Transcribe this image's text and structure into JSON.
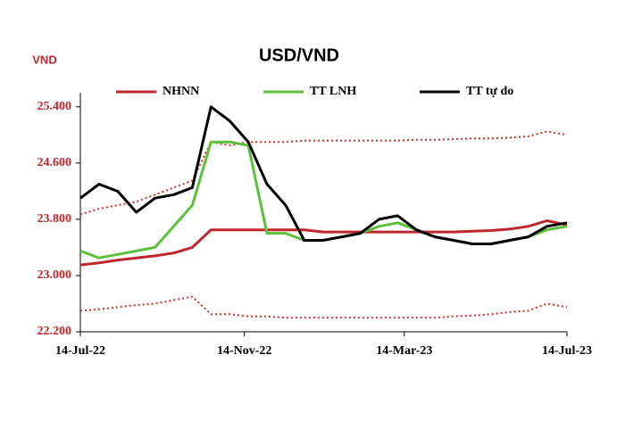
{
  "chart_data": {
    "type": "line",
    "title": "USD/VND",
    "y_unit_label": "VND",
    "x": [
      "2022-07-14",
      "2022-07-28",
      "2022-08-11",
      "2022-08-25",
      "2022-09-08",
      "2022-09-22",
      "2022-10-06",
      "2022-10-20",
      "2022-11-03",
      "2022-11-17",
      "2022-12-01",
      "2022-12-15",
      "2022-12-29",
      "2023-01-12",
      "2023-01-26",
      "2023-02-09",
      "2023-02-23",
      "2023-03-09",
      "2023-03-23",
      "2023-04-06",
      "2023-04-20",
      "2023-05-04",
      "2023-05-18",
      "2023-06-01",
      "2023-06-15",
      "2023-06-29",
      "2023-07-14"
    ],
    "series": [
      {
        "name": "NHNN",
        "color": "#c0272d",
        "values": [
          23150,
          23180,
          23220,
          23250,
          23280,
          23320,
          23400,
          23650,
          23650,
          23650,
          23650,
          23650,
          23650,
          23620,
          23620,
          23620,
          23620,
          23620,
          23620,
          23620,
          23620,
          23630,
          23640,
          23660,
          23700,
          23780,
          23720
        ]
      },
      {
        "name": "TT LNH",
        "color": "#5cc13a",
        "values": [
          23350,
          23250,
          23300,
          23350,
          23400,
          23700,
          24000,
          24900,
          24900,
          24850,
          23600,
          23600,
          23500,
          23500,
          23550,
          23600,
          23700,
          23750,
          23650,
          23550,
          23500,
          23450,
          23450,
          23500,
          23550,
          23650,
          23700
        ]
      },
      {
        "name": "TT  tự do",
        "color": "#000000",
        "values": [
          24100,
          24300,
          24200,
          23900,
          24100,
          24150,
          24250,
          25400,
          25200,
          24900,
          24300,
          24000,
          23500,
          23500,
          23550,
          23600,
          23800,
          23850,
          23650,
          23550,
          23500,
          23450,
          23450,
          23500,
          23550,
          23700,
          23750
        ]
      },
      {
        "color": "#d22b2b",
        "dash": "dotted",
        "values": [
          23870,
          23950,
          24000,
          24050,
          24150,
          24250,
          24350,
          24900,
          24850,
          24900,
          24900,
          24900,
          24920,
          24920,
          24920,
          24920,
          24920,
          24920,
          24930,
          24930,
          24940,
          24950,
          24950,
          24960,
          24980,
          25050,
          25000
        ]
      },
      {
        "color": "#d22b2b",
        "dash": "dotted",
        "values": [
          22500,
          22520,
          22550,
          22580,
          22600,
          22650,
          22700,
          22450,
          22450,
          22420,
          22420,
          22400,
          22400,
          22400,
          22400,
          22400,
          22400,
          22400,
          22400,
          22400,
          22420,
          22430,
          22450,
          22480,
          22500,
          22600,
          22550
        ]
      }
    ],
    "xlim": [
      "2022-07-14",
      "2023-07-14"
    ],
    "xticks": [
      {
        "value": "2022-07-14",
        "label": "14-Jul-22"
      },
      {
        "value": "2022-11-14",
        "label": "14-Nov-22"
      },
      {
        "value": "2023-03-14",
        "label": "14-Mar-23"
      },
      {
        "value": "2023-07-14",
        "label": "14-Jul-23"
      }
    ],
    "ylim": [
      22200,
      25600
    ],
    "yticks": [
      {
        "value": 22200,
        "label": "22.200"
      },
      {
        "value": 23000,
        "label": "23.000"
      },
      {
        "value": 23800,
        "label": "23.800"
      },
      {
        "value": 24600,
        "label": "24.600"
      },
      {
        "value": 25400,
        "label": "25.400"
      }
    ]
  }
}
